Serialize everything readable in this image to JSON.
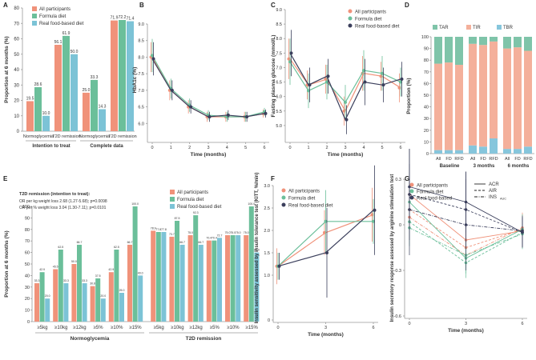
{
  "colors": {
    "all": "#f0927a",
    "formula": "#6bbf9a",
    "real": "#7cc3d6",
    "realDark": "#3b3f5c",
    "tar": "#7fc4a9",
    "tir": "#f4b09b",
    "tbr": "#86c6dc"
  },
  "chart_data": [
    {
      "panel": "A",
      "type": "bar",
      "ylabel": "Proportion at 6 months (%)",
      "ylim": [
        0,
        80
      ],
      "ticks": [
        0,
        10,
        20,
        30,
        40,
        50,
        60,
        70,
        80
      ],
      "series": [
        {
          "name": "All participants"
        },
        {
          "name": "Formula diet"
        },
        {
          "name": "Real food-based diet"
        }
      ],
      "groups": [
        {
          "label": "Normoglycemia",
          "values": [
            19.5,
            28.6,
            10.0
          ],
          "labels": [
            "19.5",
            "28.6",
            "10.0"
          ]
        },
        {
          "label": "T2D remission",
          "values": [
            56.1,
            61.9,
            50.0
          ],
          "labels": [
            "56.1",
            "61.9",
            "50.0"
          ]
        },
        {
          "label": "Normoglycemia",
          "values": [
            25.0,
            33.3,
            14.3
          ],
          "labels": [
            "25.0",
            "33.3",
            "14.3"
          ]
        },
        {
          "label": "T2D remission",
          "values": [
            71.9,
            72.2,
            71.4
          ],
          "labels": [
            "71.9",
            "72.2",
            "71.4"
          ]
        }
      ],
      "sections": [
        "Intention to treat",
        "Complete data"
      ]
    },
    {
      "panel": "B",
      "type": "line",
      "ylabel": "HbA1c (%)",
      "xlabel": "Time (months)",
      "ylim": [
        5.5,
        9.0
      ],
      "yticks": [
        6.0,
        6.5,
        7.0,
        7.5,
        8.0,
        8.5,
        9.0
      ],
      "yticklabels": [
        "6.0",
        "6.5",
        "7.0",
        "7.5",
        "8.0",
        "8.5",
        "9.0"
      ],
      "x": [
        0,
        1,
        2,
        3,
        4,
        5,
        6
      ],
      "series": [
        {
          "name": "All participants",
          "values": [
            8.0,
            7.0,
            6.5,
            6.2,
            6.2,
            6.2,
            6.3
          ],
          "err": [
            0.45,
            0.3,
            0.2,
            0.15,
            0.15,
            0.15,
            0.12
          ]
        },
        {
          "name": "Formula diet",
          "values": [
            8.05,
            7.05,
            6.55,
            6.25,
            6.2,
            6.2,
            6.35
          ],
          "err": [
            0.5,
            0.3,
            0.2,
            0.15,
            0.15,
            0.15,
            0.12
          ]
        },
        {
          "name": "Real food-based diet",
          "values": [
            7.95,
            7.0,
            6.5,
            6.2,
            6.25,
            6.2,
            6.3
          ],
          "err": [
            0.5,
            0.3,
            0.2,
            0.15,
            0.15,
            0.15,
            0.12
          ]
        }
      ]
    },
    {
      "panel": "C",
      "type": "line",
      "ylabel": "Fasting plasma glucose (mmol/L)",
      "xlabel": "Time (months)",
      "ylim": [
        4.5,
        9.0
      ],
      "yticks": [
        5.0,
        5.5,
        6.0,
        6.5,
        7.0,
        7.5,
        8.0,
        8.5,
        9.0
      ],
      "yticklabels": [
        "5.0",
        "5.5",
        "6.0",
        "6.5",
        "7.0",
        "7.5",
        "8.0",
        "8.5",
        "9.0"
      ],
      "x": [
        0,
        1,
        2,
        3,
        4,
        5,
        6
      ],
      "legend": [
        "All participants",
        "Formula diet",
        "Real food-based diet"
      ],
      "series": [
        {
          "name": "All participants",
          "values": [
            7.3,
            6.4,
            6.6,
            5.5,
            6.8,
            6.7,
            6.3
          ],
          "err": [
            0.7,
            0.5,
            0.5,
            0.5,
            0.6,
            0.5,
            0.5
          ]
        },
        {
          "name": "Formula diet",
          "values": [
            7.2,
            6.2,
            6.5,
            5.8,
            6.9,
            6.8,
            6.5
          ],
          "err": [
            0.8,
            0.6,
            0.6,
            0.6,
            0.7,
            0.6,
            0.5
          ]
        },
        {
          "name": "Real food-based diet",
          "values": [
            7.5,
            6.4,
            6.7,
            5.2,
            6.5,
            6.4,
            6.6
          ],
          "err": [
            0.8,
            0.6,
            0.6,
            0.5,
            0.8,
            0.6,
            0.6
          ]
        }
      ]
    },
    {
      "panel": "D",
      "type": "bar",
      "ylabel": "Proportion (%)",
      "ylim": [
        0,
        100
      ],
      "yticks": [
        0,
        10,
        20,
        30,
        40,
        50,
        60,
        70,
        80,
        90,
        100
      ],
      "legend": [
        "TAR",
        "TIR",
        "TBR"
      ],
      "bars": [
        {
          "label": "All",
          "TBR": 3,
          "TIR": 74,
          "TAR": 23
        },
        {
          "label": "FD",
          "TBR": 3,
          "TIR": 75,
          "TAR": 22
        },
        {
          "label": "RFD",
          "TBR": 3,
          "TIR": 73,
          "TAR": 24
        },
        {
          "label": "All",
          "TBR": 7,
          "TIR": 87,
          "TAR": 6
        },
        {
          "label": "FD",
          "TBR": 6,
          "TIR": 87,
          "TAR": 7
        },
        {
          "label": "RFD",
          "TBR": 13,
          "TIR": 83,
          "TAR": 4
        },
        {
          "label": "All",
          "TBR": 4,
          "TIR": 86,
          "TAR": 10
        },
        {
          "label": "FD",
          "TBR": 4,
          "TIR": 87,
          "TAR": 9
        },
        {
          "label": "RFD",
          "TBR": 6,
          "TIR": 82,
          "TAR": 12
        }
      ],
      "groups": [
        "Baseline",
        "3 months",
        "6 months"
      ]
    },
    {
      "panel": "E",
      "type": "bar",
      "ylabel": "Proportion at 6 months (%)",
      "ylim": [
        0,
        100
      ],
      "yticks": [
        0,
        10,
        20,
        30,
        40,
        50,
        60,
        70,
        80,
        90,
        100
      ],
      "legend": [
        "All participants",
        "Formula diet",
        "Real food-based diet"
      ],
      "note_title": "T2D remission (intention to treat):",
      "note_lines": [
        "OR per kg weight loss 2.68 (1.27-5.68); p=0.0098",
        "OR per % weight loss 3.04 (1.30-7.11); p=0.0101"
      ],
      "categories": [
        "≥5kg",
        "≥10kg",
        "≥12kg",
        "≥5%",
        "≥10%",
        "≥15%",
        "≥5kg",
        "≥10kg",
        "≥12kg",
        "≥5%",
        "≥10%",
        "≥15%"
      ],
      "sections": [
        "Normoglycemia",
        "T2D remission"
      ],
      "values": [
        [
          33.3,
          42.9,
          20.0
        ],
        [
          45.5,
          62.5,
          33.3
        ],
        [
          50.0,
          66.7,
          33.3
        ],
        [
          30.8,
          37.5,
          20.0
        ],
        [
          42.9,
          62.5,
          25.0
        ],
        [
          66.7,
          100.0,
          40.0
        ],
        [
          78.9,
          77.8,
          77.8
        ],
        [
          73.7,
          87.5,
          66.7
        ],
        [
          75.0,
          92.3,
          66.7
        ],
        [
          70.4,
          70.4,
          72.7
        ],
        [
          75.0,
          75.0,
          75.0
        ],
        [
          75.0,
          100.0,
          60.0
        ]
      ],
      "labels": [
        [
          "33.3",
          "42.9",
          "20.0"
        ],
        [
          "45.5",
          "62.5",
          "33.3"
        ],
        [
          "50.0",
          "66.7",
          "33.3"
        ],
        [
          "30.8",
          "37.5",
          "20.0"
        ],
        [
          "42.9",
          "62.5",
          "25.0"
        ],
        [
          "66.7",
          "100.0",
          "40.0"
        ],
        [
          "78.9",
          "77.8",
          "77.8"
        ],
        [
          "73.7",
          "87.5",
          "66.7"
        ],
        [
          "75.0",
          "92.3",
          "66.7"
        ],
        [
          "70.4",
          "70.4",
          "72.7"
        ],
        [
          "75.0",
          "75.0",
          "75.0"
        ],
        [
          "75.0",
          "100.0",
          "60.0"
        ]
      ]
    },
    {
      "panel": "F",
      "type": "line",
      "ylabel": "Insulin sensitivity assessed by insulin tolerance test (KITT, %/min)",
      "xlabel": "Time (months)",
      "ylim": [
        0,
        3.0
      ],
      "yticks": [
        0,
        1.0,
        1.5,
        2.0,
        2.5,
        3.0
      ],
      "yticklabels": [
        "0",
        "1.0",
        "1.5",
        "2.0",
        "2.5",
        "3.0"
      ],
      "x": [
        0,
        3,
        6
      ],
      "xticklabels": [
        "0",
        "3",
        "6"
      ],
      "legend": [
        "All participants",
        "Formula diet",
        "Real food-based diet"
      ],
      "series": [
        {
          "name": "All participants",
          "values": [
            1.2,
            1.95,
            2.35
          ],
          "err": [
            0.4,
            0.5,
            0.6
          ]
        },
        {
          "name": "Formula diet",
          "values": [
            1.2,
            2.2,
            2.2
          ],
          "err": [
            0.3,
            0.7,
            0.5
          ]
        },
        {
          "name": "Real food-based diet",
          "values": [
            1.2,
            1.5,
            2.45
          ],
          "err": [
            0.3,
            1.0,
            1.0
          ]
        }
      ]
    },
    {
      "panel": "G",
      "type": "line",
      "ylabel": "Insulin secretory response assessed by arginine stimulation test",
      "xlabel": "Time (months)",
      "ylim": [
        -0.6,
        0.3
      ],
      "yticks": [
        -0.6,
        -0.3,
        0,
        0.3
      ],
      "yticklabels": [
        "-0.6",
        "-0.3",
        "0",
        "0.3"
      ],
      "x": [
        0,
        3,
        6
      ],
      "xticklabels": [
        "0",
        "3",
        "6"
      ],
      "legend": [
        "All participants",
        "Formula diet",
        "Real food-based"
      ],
      "legend2": [
        "ACR",
        "AIR",
        "INS"
      ],
      "legend2_sub": "AUC",
      "series": [
        {
          "name": "All participants ACR",
          "values": [
            0.2,
            -0.1,
            -0.04
          ],
          "err": [
            0.1,
            0.1,
            0.1
          ],
          "group": "all",
          "style": "solid"
        },
        {
          "name": "All participants AIR",
          "values": [
            0.1,
            -0.15,
            -0.03
          ],
          "err": [
            0.1,
            0.1,
            0.1
          ],
          "group": "all",
          "style": "dashed"
        },
        {
          "name": "All participants INS",
          "values": [
            0.05,
            -0.2,
            -0.02
          ],
          "err": [
            0.1,
            0.1,
            0.1
          ],
          "group": "all",
          "style": "dashdot"
        },
        {
          "name": "Formula diet ACR",
          "values": [
            0.15,
            -0.22,
            -0.03
          ],
          "err": [
            0.12,
            0.1,
            0.1
          ],
          "group": "formula",
          "style": "solid"
        },
        {
          "name": "Formula diet AIR",
          "values": [
            0.02,
            -0.25,
            -0.05
          ],
          "err": [
            0.12,
            0.1,
            0.1
          ],
          "group": "formula",
          "style": "dashed"
        },
        {
          "name": "Formula diet INS",
          "values": [
            -0.02,
            -0.2,
            -0.06
          ],
          "err": [
            0.12,
            0.1,
            0.1
          ],
          "group": "formula",
          "style": "dashdot"
        },
        {
          "name": "Real food ACR",
          "values": [
            0.25,
            0.15,
            -0.05
          ],
          "err": [
            0.25,
            0.2,
            0.1
          ],
          "group": "real",
          "style": "solid"
        },
        {
          "name": "Real food AIR",
          "values": [
            0.2,
            0.1,
            -0.05
          ],
          "err": [
            0.3,
            0.25,
            0.1
          ],
          "group": "real",
          "style": "dashed"
        },
        {
          "name": "Real food INS",
          "values": [
            0.1,
            0.0,
            -0.04
          ],
          "err": [
            0.3,
            0.3,
            0.1
          ],
          "group": "real",
          "style": "dashdot"
        }
      ]
    }
  ],
  "panelLetters": [
    "A",
    "B",
    "C",
    "D",
    "E",
    "F",
    "G"
  ],
  "axisTitles": {
    "time": "Time (months)"
  },
  "xticks7": [
    "0",
    "1",
    "2",
    "3",
    "4",
    "5",
    "6"
  ]
}
